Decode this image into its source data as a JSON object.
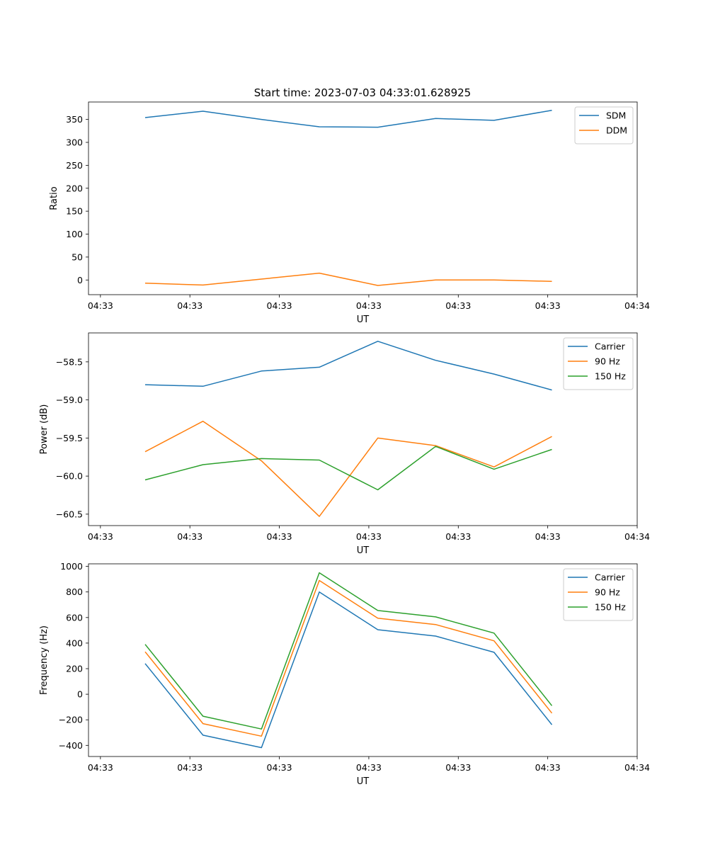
{
  "figure_title": "Start time: 2023-07-03 04:33:01.628925",
  "colors": {
    "c0": "#1f77b4",
    "c1": "#ff7f0e",
    "c2": "#2ca02c"
  },
  "chart_data": [
    {
      "type": "line",
      "xlabel": "UT",
      "ylabel": "Ratio",
      "xtick_labels": [
        "04:33",
        "04:33",
        "04:33",
        "04:33",
        "04:33",
        "04:33",
        "04:34"
      ],
      "xtick_values": [
        0,
        1.5,
        3,
        4.5,
        6,
        7.5,
        9
      ],
      "xlim": [
        -0.2,
        9.0
      ],
      "ylim": [
        -32,
        388
      ],
      "yticks": [
        0,
        50,
        100,
        150,
        200,
        250,
        300,
        350
      ],
      "x": [
        0.75,
        1.72,
        2.7,
        3.67,
        4.65,
        5.62,
        6.6,
        7.57
      ],
      "series": [
        {
          "name": "SDM",
          "color": "#1f77b4",
          "values": [
            354,
            368,
            350,
            334,
            333,
            352,
            348,
            370
          ]
        },
        {
          "name": "DDM",
          "color": "#ff7f0e",
          "values": [
            -7,
            -11,
            2,
            15,
            -12,
            0,
            0,
            -3
          ]
        }
      ],
      "legend": "upper-right"
    },
    {
      "type": "line",
      "xlabel": "UT",
      "ylabel": "Power (dB)",
      "xtick_labels": [
        "04:33",
        "04:33",
        "04:33",
        "04:33",
        "04:33",
        "04:33",
        "04:34"
      ],
      "xtick_values": [
        0,
        1.5,
        3,
        4.5,
        6,
        7.5,
        9
      ],
      "xlim": [
        -0.2,
        9.0
      ],
      "ylim": [
        -60.65,
        -58.12
      ],
      "yticks": [
        -60.5,
        -60.0,
        -59.5,
        -59.0,
        -58.5
      ],
      "ytick_labels": [
        "−60.5",
        "−60.0",
        "−59.5",
        "−59.0",
        "−58.5"
      ],
      "x": [
        0.75,
        1.72,
        2.7,
        3.67,
        4.65,
        5.62,
        6.6,
        7.57
      ],
      "series": [
        {
          "name": "Carrier",
          "color": "#1f77b4",
          "values": [
            -58.8,
            -58.82,
            -58.62,
            -58.57,
            -58.23,
            -58.48,
            -58.66,
            -58.87
          ]
        },
        {
          "name": "90 Hz",
          "color": "#ff7f0e",
          "values": [
            -59.68,
            -59.28,
            -59.8,
            -60.53,
            -59.5,
            -59.6,
            -59.88,
            -59.48
          ]
        },
        {
          "name": "150 Hz",
          "color": "#2ca02c",
          "values": [
            -60.05,
            -59.85,
            -59.77,
            -59.79,
            -60.18,
            -59.61,
            -59.91,
            -59.65
          ]
        }
      ],
      "legend": "upper-right"
    },
    {
      "type": "line",
      "xlabel": "UT",
      "ylabel": "Frequency (Hz)",
      "xtick_labels": [
        "04:33",
        "04:33",
        "04:33",
        "04:33",
        "04:33",
        "04:33",
        "04:34"
      ],
      "xtick_values": [
        0,
        1.5,
        3,
        4.5,
        6,
        7.5,
        9
      ],
      "xlim": [
        -0.2,
        9.0
      ],
      "ylim": [
        -487,
        1020
      ],
      "yticks": [
        -400,
        -200,
        0,
        200,
        400,
        600,
        800,
        1000
      ],
      "ytick_labels": [
        "−400",
        "−200",
        "0",
        "200",
        "400",
        "600",
        "800",
        "1000"
      ],
      "x": [
        0.75,
        1.72,
        2.7,
        3.67,
        4.65,
        5.62,
        6.6,
        7.57
      ],
      "series": [
        {
          "name": "Carrier",
          "color": "#1f77b4",
          "values": [
            240,
            -320,
            -418,
            800,
            505,
            455,
            328,
            -238
          ]
        },
        {
          "name": "90 Hz",
          "color": "#ff7f0e",
          "values": [
            332,
            -230,
            -328,
            890,
            595,
            545,
            418,
            -148
          ]
        },
        {
          "name": "150 Hz",
          "color": "#2ca02c",
          "values": [
            390,
            -172,
            -272,
            950,
            655,
            605,
            478,
            -90
          ]
        }
      ],
      "legend": "upper-right"
    }
  ]
}
